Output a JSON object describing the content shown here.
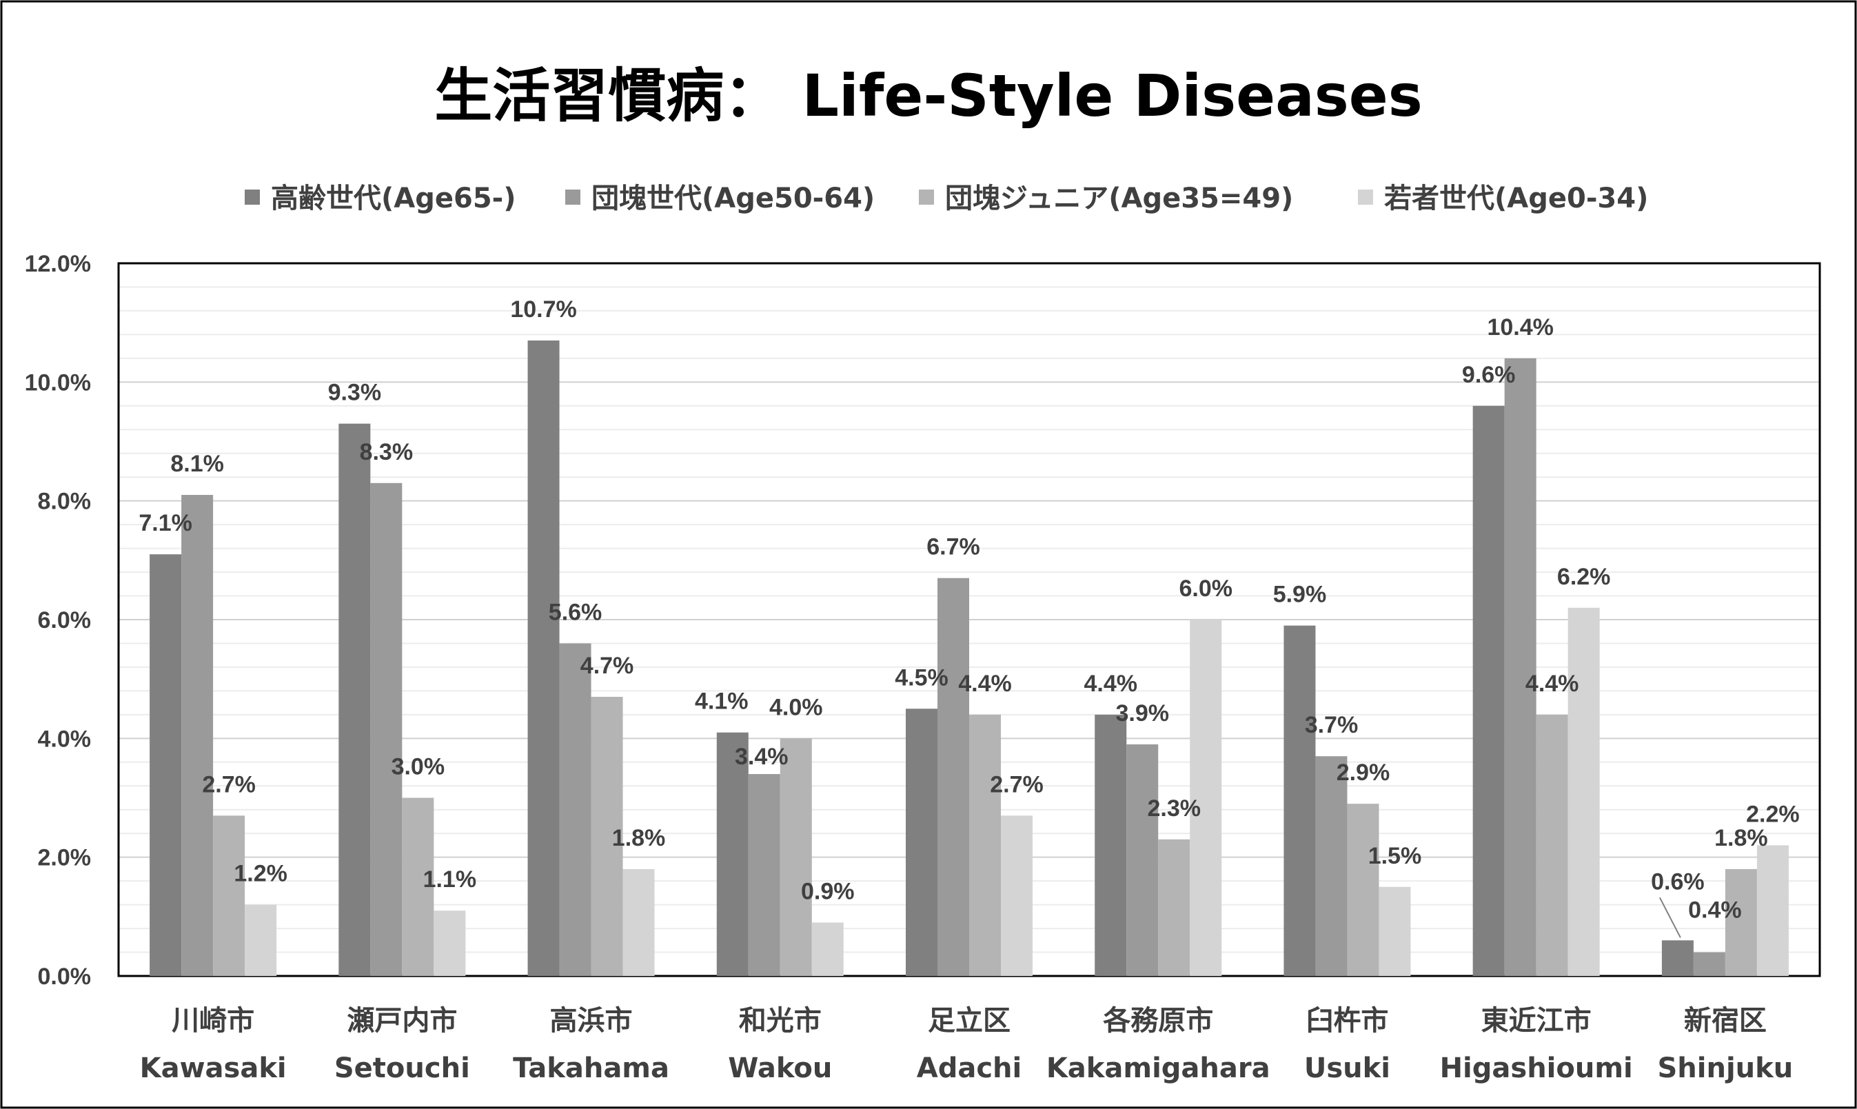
{
  "chart_data": {
    "type": "bar",
    "title": "生活習慣病： Life-Style Diseases",
    "categories": [
      {
        "ja": "川崎市",
        "en": "Kawasaki"
      },
      {
        "ja": "瀬戸内市",
        "en": "Setouchi"
      },
      {
        "ja": "高浜市",
        "en": "Takahama"
      },
      {
        "ja": "和光市",
        "en": "Wakou"
      },
      {
        "ja": "足立区",
        "en": "Adachi"
      },
      {
        "ja": "各務原市",
        "en": "Kakamigahara"
      },
      {
        "ja": "臼杵市",
        "en": "Usuki"
      },
      {
        "ja": "東近江市",
        "en": "Higashioumi"
      },
      {
        "ja": "新宿区",
        "en": "Shinjuku"
      }
    ],
    "series": [
      {
        "name": "高齢世代(Age65-)",
        "color": "#808080",
        "values": [
          7.1,
          9.3,
          10.7,
          4.1,
          4.5,
          4.4,
          5.9,
          9.6,
          0.6
        ]
      },
      {
        "name": "団塊世代(Age50-64)",
        "color": "#9a9a9a",
        "values": [
          8.1,
          8.3,
          5.6,
          3.4,
          6.7,
          3.9,
          3.7,
          10.4,
          0.4
        ]
      },
      {
        "name": "団塊ジュニア(Age35=49)",
        "color": "#b4b4b4",
        "values": [
          2.7,
          3.0,
          4.7,
          4.0,
          4.4,
          2.3,
          2.9,
          4.4,
          1.8
        ]
      },
      {
        "name": "若者世代(Age0-34)",
        "color": "#d4d4d4",
        "values": [
          1.2,
          1.1,
          1.8,
          0.9,
          2.7,
          6.0,
          1.5,
          6.2,
          2.2
        ]
      }
    ],
    "value_unit": "%",
    "ylim": [
      0,
      12
    ],
    "yticks": [
      "0.0%",
      "2.0%",
      "4.0%",
      "6.0%",
      "8.0%",
      "10.0%",
      "12.0%"
    ],
    "ytick_values": [
      0,
      2,
      4,
      6,
      8,
      10,
      12
    ],
    "grid": true,
    "legend": "top-center",
    "data_labels": true
  }
}
